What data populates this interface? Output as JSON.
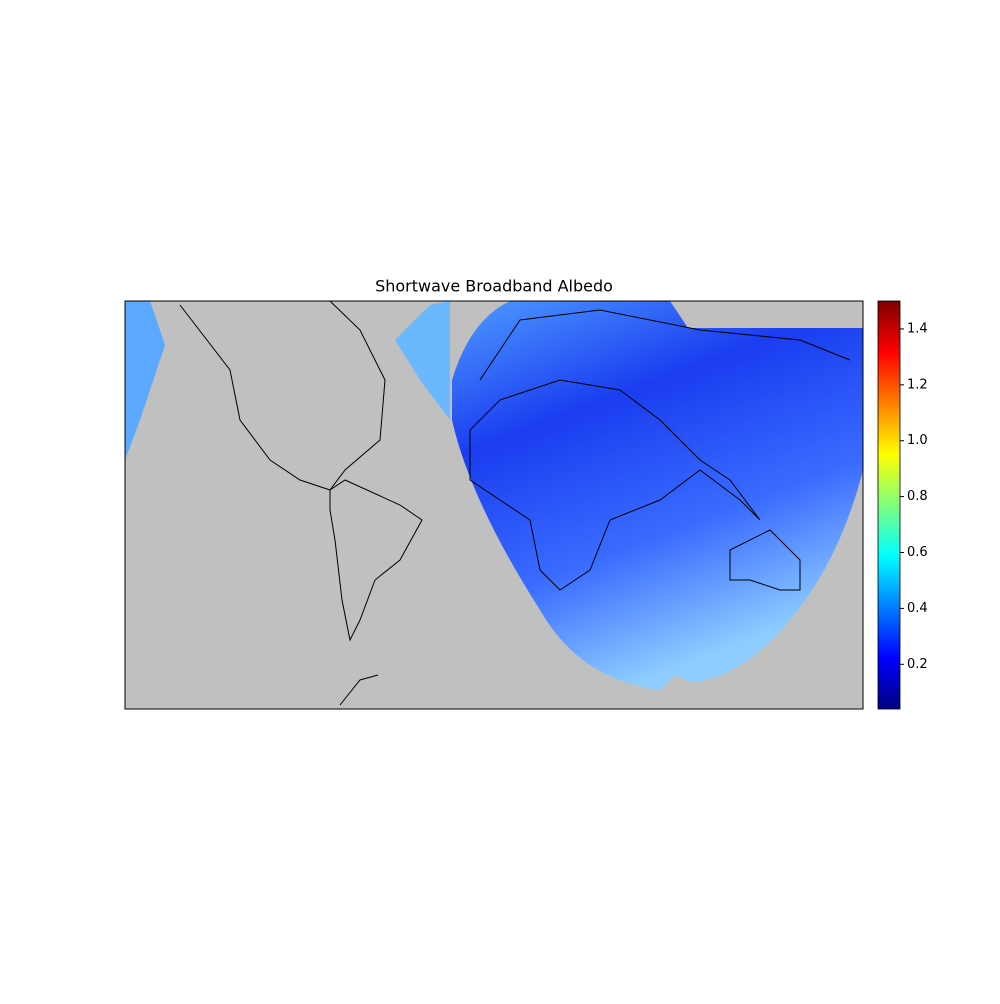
{
  "chart_data": {
    "type": "map",
    "title": "Shortwave Broadband Albedo",
    "colorbar": {
      "clim": [
        0.04,
        1.5
      ],
      "ticks": [
        0.2,
        0.4,
        0.6,
        0.8,
        {
          "value": 1,
          "label": "1.0"
        },
        1.2,
        1.4
      ],
      "colors": [
        "#00007f",
        "#0000ff",
        "#007fff",
        "#00ffff",
        "#7fff7f",
        "#ffff00",
        "#ff7f00",
        "#ff0000",
        "#7f0000"
      ]
    }
  }
}
